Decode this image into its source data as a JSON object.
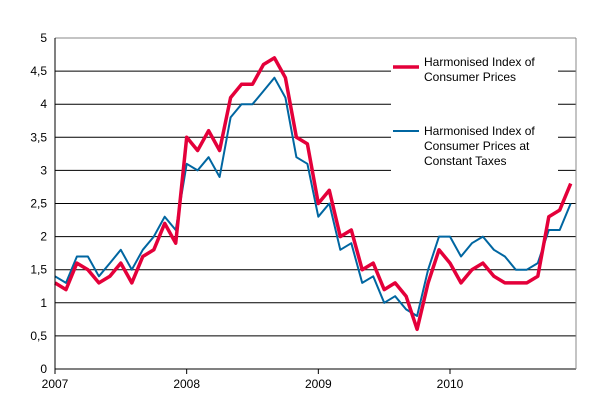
{
  "chart_data": {
    "type": "line",
    "title": "",
    "xlabel": "",
    "ylabel": "",
    "ylim": [
      0,
      5
    ],
    "yticks": [
      "0",
      "0,5",
      "1",
      "1,5",
      "2",
      "2,5",
      "3",
      "3,5",
      "4",
      "4,5",
      "5"
    ],
    "xticks": [
      "2007",
      "2008",
      "2009",
      "2010"
    ],
    "x_start": "2007-01",
    "x_frequency": "monthly",
    "grid": "horizontal",
    "legend_position": "top-right",
    "series": [
      {
        "name": "Harmonised Index of Consumer Prices",
        "color": "#e4003a",
        "values": [
          1.3,
          1.2,
          1.6,
          1.5,
          1.3,
          1.4,
          1.6,
          1.3,
          1.7,
          1.8,
          2.2,
          1.9,
          3.5,
          3.3,
          3.6,
          3.3,
          4.1,
          4.3,
          4.3,
          4.6,
          4.7,
          4.4,
          3.5,
          3.4,
          2.5,
          2.7,
          2.0,
          2.1,
          1.5,
          1.6,
          1.2,
          1.3,
          1.1,
          0.6,
          1.3,
          1.8,
          1.6,
          1.3,
          1.5,
          1.6,
          1.4,
          1.3,
          1.3,
          1.3,
          1.4,
          2.3,
          2.4,
          2.8
        ]
      },
      {
        "name": "Harmonised Index of Consumer Prices at Constant Taxes",
        "color": "#0066a1",
        "values": [
          1.4,
          1.3,
          1.7,
          1.7,
          1.4,
          1.6,
          1.8,
          1.5,
          1.8,
          2.0,
          2.3,
          2.1,
          3.1,
          3.0,
          3.2,
          2.9,
          3.8,
          4.0,
          4.0,
          4.2,
          4.4,
          4.1,
          3.2,
          3.1,
          2.3,
          2.5,
          1.8,
          1.9,
          1.3,
          1.4,
          1.0,
          1.1,
          0.9,
          0.8,
          1.5,
          2.0,
          2.0,
          1.7,
          1.9,
          2.0,
          1.8,
          1.7,
          1.5,
          1.5,
          1.6,
          2.1,
          2.1,
          2.5
        ]
      }
    ],
    "legend": {
      "entries": [
        {
          "lines": [
            "Harmonised Index of",
            "Consumer Prices"
          ]
        },
        {
          "lines": [
            "Harmonised Index of",
            "Consumer Prices at",
            "Constant Taxes"
          ]
        }
      ]
    }
  }
}
